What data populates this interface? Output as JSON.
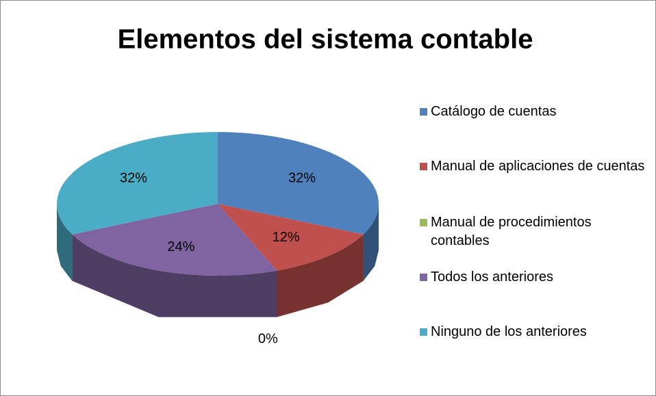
{
  "chart_data": {
    "type": "pie",
    "title": "Elementos del sistema contable",
    "categories": [
      "Catálogo de cuentas",
      "Manual de aplicaciones de cuentas",
      "Manual de procedimientos contables",
      "Todos los anteriores",
      "Ninguno de los anteriores"
    ],
    "values": [
      32,
      12,
      0,
      24,
      32
    ],
    "value_labels": [
      "32%",
      "12%",
      "0%",
      "24%",
      "32%"
    ],
    "colors": [
      "#4f81bd",
      "#c0504d",
      "#9bbb59",
      "#8064a2",
      "#4bacc6"
    ],
    "legend": "right"
  }
}
